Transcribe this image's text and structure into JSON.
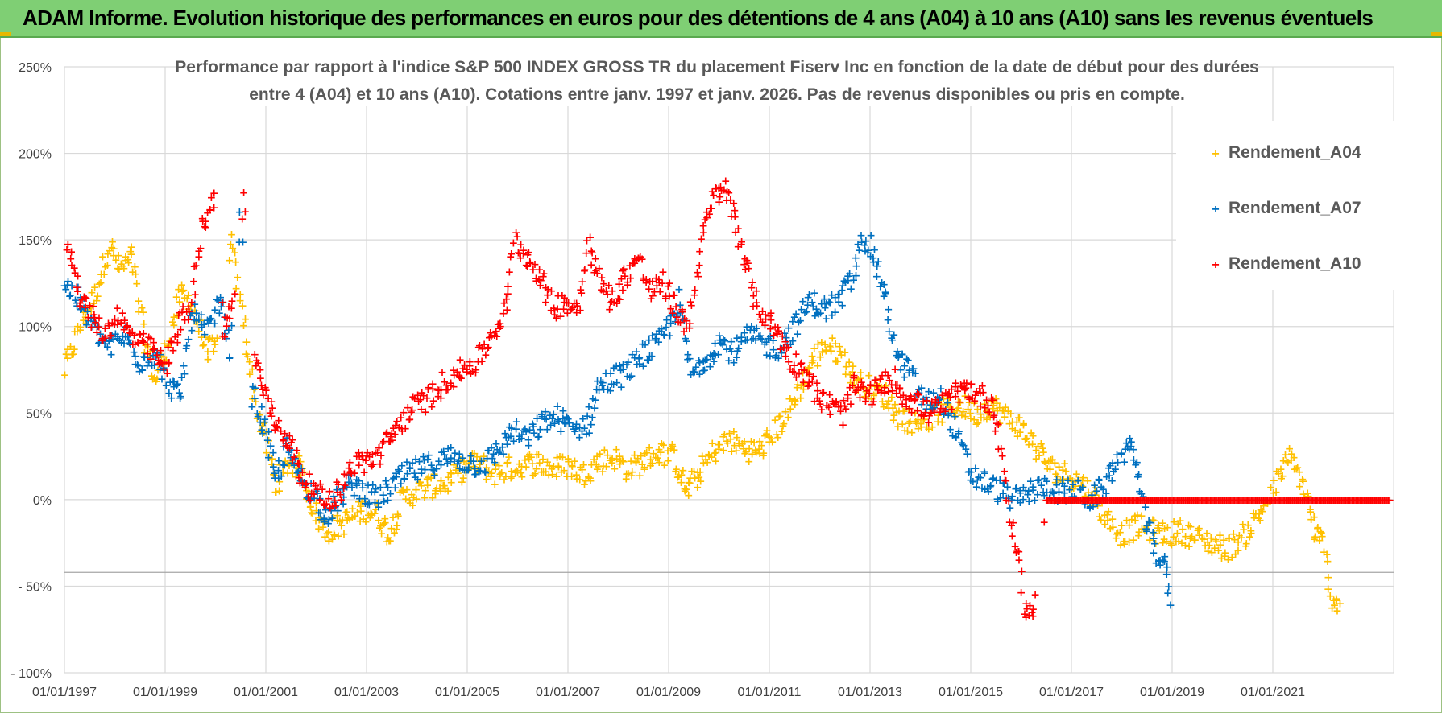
{
  "header": {
    "title": "ADAM Informe. Evolution historique des performances en euros pour des détentions de 4 ans (A04) à 10 ans (A10) sans les revenus éventuels"
  },
  "colors": {
    "A04": "#ffc000",
    "A07": "#0070c0",
    "A10": "#ff0000",
    "grid": "#d9d9d9",
    "title_bar": "#7fcf74"
  },
  "chart_data": {
    "type": "scatter",
    "title_lines": [
      "Performance par rapport à l'indice S&P 500 INDEX GROSS TR  du placement Fiserv Inc en fonction de la date de début pour des durées",
      "entre 4 (A04) et 10 ans (A10).  Cotations entre janv. 1997 et janv. 2026. Pas de revenus disponibles ou pris en compte."
    ],
    "xlabel": "",
    "ylabel": "",
    "xlim": [
      1997.0,
      2023.4
    ],
    "ylim": [
      -100,
      250
    ],
    "x_tick_labels": [
      "01/01/1997",
      "01/01/1999",
      "01/01/2001",
      "01/01/2003",
      "01/01/2005",
      "01/01/2007",
      "01/01/2009",
      "01/01/2011",
      "01/01/2013",
      "01/01/2015",
      "01/01/2017",
      "01/01/2019",
      "01/01/2021"
    ],
    "x_tick_values": [
      1997,
      1999,
      2001,
      2003,
      2005,
      2007,
      2009,
      2011,
      2013,
      2015,
      2017,
      2019,
      2021
    ],
    "y_tick_labels": [
      "250%",
      "200%",
      "150%",
      "100%",
      "50%",
      "0%",
      "- 50%",
      "- 100%"
    ],
    "y_tick_values": [
      250,
      200,
      150,
      100,
      50,
      0,
      -50,
      -100
    ],
    "legend": [
      "Rendement_A04",
      "Rendement_A07",
      "Rendement_A10"
    ],
    "legend_position": "top-right",
    "series": [
      {
        "name": "Rendement_A04",
        "color": "#ffc000",
        "points": [
          [
            1997.0,
            75
          ],
          [
            1997.3,
            100
          ],
          [
            1997.6,
            118
          ],
          [
            1997.9,
            148
          ],
          [
            1998.1,
            133
          ],
          [
            1998.35,
            140
          ],
          [
            1998.6,
            92
          ],
          [
            1998.8,
            68
          ],
          [
            1999.0,
            85
          ],
          [
            1999.3,
            118
          ],
          [
            1999.5,
            115
          ],
          [
            1999.8,
            88
          ],
          [
            2000.0,
            86
          ],
          [
            2000.3,
            150
          ],
          [
            2000.55,
            105
          ],
          [
            2000.8,
            55
          ],
          [
            2001.0,
            35
          ],
          [
            2001.2,
            8
          ],
          [
            2001.45,
            22
          ],
          [
            2001.7,
            18
          ],
          [
            2001.95,
            -5
          ],
          [
            2002.2,
            -18
          ],
          [
            2002.45,
            -15
          ],
          [
            2002.7,
            -10
          ],
          [
            2002.95,
            -5
          ],
          [
            2003.2,
            -8
          ],
          [
            2003.45,
            -20
          ],
          [
            2003.7,
            0
          ],
          [
            2004.0,
            5
          ],
          [
            2004.3,
            8
          ],
          [
            2004.6,
            10
          ],
          [
            2004.9,
            18
          ],
          [
            2005.2,
            22
          ],
          [
            2005.5,
            15
          ],
          [
            2005.8,
            18
          ],
          [
            2006.1,
            20
          ],
          [
            2006.4,
            22
          ],
          [
            2006.7,
            18
          ],
          [
            2007.0,
            20
          ],
          [
            2007.3,
            15
          ],
          [
            2007.6,
            22
          ],
          [
            2007.9,
            25
          ],
          [
            2008.2,
            18
          ],
          [
            2008.5,
            22
          ],
          [
            2008.8,
            28
          ],
          [
            2009.1,
            25
          ],
          [
            2009.35,
            5
          ],
          [
            2009.6,
            15
          ],
          [
            2009.9,
            28
          ],
          [
            2010.2,
            35
          ],
          [
            2010.5,
            30
          ],
          [
            2010.8,
            28
          ],
          [
            2011.0,
            35
          ],
          [
            2011.3,
            48
          ],
          [
            2011.55,
            62
          ],
          [
            2011.8,
            78
          ],
          [
            2012.1,
            90
          ],
          [
            2012.4,
            85
          ],
          [
            2012.7,
            70
          ],
          [
            2013.0,
            65
          ],
          [
            2013.3,
            60
          ],
          [
            2013.6,
            48
          ],
          [
            2013.9,
            45
          ],
          [
            2014.2,
            48
          ],
          [
            2014.5,
            52
          ],
          [
            2014.8,
            55
          ],
          [
            2015.1,
            50
          ],
          [
            2015.4,
            55
          ],
          [
            2015.7,
            48
          ],
          [
            2016.0,
            42
          ],
          [
            2016.3,
            30
          ],
          [
            2016.6,
            18
          ],
          [
            2016.9,
            15
          ],
          [
            2017.2,
            10
          ],
          [
            2017.45,
            2
          ],
          [
            2017.7,
            -10
          ],
          [
            2018.0,
            -20
          ],
          [
            2018.3,
            -15
          ],
          [
            2018.6,
            -18
          ],
          [
            2018.9,
            -20
          ],
          [
            2019.2,
            -18
          ],
          [
            2019.5,
            -22
          ],
          [
            2019.8,
            -25
          ],
          [
            2020.1,
            -28
          ],
          [
            2020.4,
            -22
          ],
          [
            2020.7,
            -10
          ],
          [
            2021.0,
            5
          ],
          [
            2021.3,
            25
          ],
          [
            2021.6,
            10
          ],
          [
            2021.85,
            -20
          ],
          [
            2022.0,
            -25
          ],
          [
            2022.15,
            -55
          ],
          [
            2022.35,
            -60
          ]
        ]
      },
      {
        "name": "Rendement_A07",
        "color": "#0070c0",
        "points": [
          [
            1997.0,
            125
          ],
          [
            1997.3,
            115
          ],
          [
            1997.6,
            98
          ],
          [
            1997.9,
            88
          ],
          [
            1998.2,
            95
          ],
          [
            1998.5,
            80
          ],
          [
            1998.8,
            85
          ],
          [
            1999.0,
            70
          ],
          [
            1999.3,
            58
          ],
          [
            1999.55,
            110
          ],
          [
            1999.8,
            95
          ],
          [
            2000.1,
            115
          ],
          [
            2000.3,
            85
          ],
          [
            2000.5,
            160
          ],
          [
            2000.75,
            60
          ],
          [
            2001.0,
            40
          ],
          [
            2001.2,
            10
          ],
          [
            2001.4,
            30
          ],
          [
            2001.65,
            15
          ],
          [
            2001.9,
            5
          ],
          [
            2002.2,
            -8
          ],
          [
            2002.45,
            0
          ],
          [
            2002.7,
            10
          ],
          [
            2002.95,
            5
          ],
          [
            2003.2,
            0
          ],
          [
            2003.5,
            8
          ],
          [
            2003.8,
            15
          ],
          [
            2004.1,
            18
          ],
          [
            2004.4,
            22
          ],
          [
            2004.7,
            25
          ],
          [
            2005.0,
            22
          ],
          [
            2005.3,
            20
          ],
          [
            2005.6,
            28
          ],
          [
            2005.9,
            40
          ],
          [
            2006.2,
            35
          ],
          [
            2006.5,
            45
          ],
          [
            2006.8,
            48
          ],
          [
            2007.1,
            40
          ],
          [
            2007.4,
            45
          ],
          [
            2007.6,
            65
          ],
          [
            2007.9,
            70
          ],
          [
            2008.2,
            75
          ],
          [
            2008.5,
            85
          ],
          [
            2008.8,
            90
          ],
          [
            2009.0,
            100
          ],
          [
            2009.2,
            115
          ],
          [
            2009.45,
            72
          ],
          [
            2009.75,
            82
          ],
          [
            2010.0,
            92
          ],
          [
            2010.3,
            85
          ],
          [
            2010.6,
            95
          ],
          [
            2010.9,
            90
          ],
          [
            2011.2,
            88
          ],
          [
            2011.5,
            100
          ],
          [
            2011.8,
            115
          ],
          [
            2012.1,
            110
          ],
          [
            2012.4,
            115
          ],
          [
            2012.7,
            130
          ],
          [
            2012.85,
            155
          ],
          [
            2013.1,
            140
          ],
          [
            2013.35,
            110
          ],
          [
            2013.55,
            80
          ],
          [
            2013.8,
            75
          ],
          [
            2014.1,
            55
          ],
          [
            2014.4,
            60
          ],
          [
            2014.7,
            40
          ],
          [
            2015.0,
            15
          ],
          [
            2015.3,
            10
          ],
          [
            2015.6,
            5
          ],
          [
            2015.9,
            0
          ],
          [
            2016.2,
            5
          ],
          [
            2016.5,
            8
          ],
          [
            2016.8,
            5
          ],
          [
            2017.1,
            5
          ],
          [
            2017.4,
            0
          ],
          [
            2017.7,
            10
          ],
          [
            2018.0,
            28
          ],
          [
            2018.25,
            30
          ],
          [
            2018.45,
            -10
          ],
          [
            2018.7,
            -30
          ],
          [
            2018.9,
            -42
          ],
          [
            2019.0,
            -70
          ]
        ]
      },
      {
        "name": "Rendement_A10",
        "color": "#ff0000",
        "points": [
          [
            1997.05,
            150
          ],
          [
            1997.3,
            120
          ],
          [
            1997.55,
            105
          ],
          [
            1997.8,
            95
          ],
          [
            1998.05,
            108
          ],
          [
            1998.3,
            95
          ],
          [
            1998.55,
            90
          ],
          [
            1998.8,
            85
          ],
          [
            1999.0,
            75
          ],
          [
            1999.25,
            100
          ],
          [
            1999.5,
            110
          ],
          [
            1999.75,
            160
          ],
          [
            1999.95,
            175
          ],
          [
            2000.15,
            100
          ],
          [
            2000.35,
            110
          ],
          [
            2000.55,
            175
          ],
          [
            2000.8,
            80
          ],
          [
            2001.0,
            60
          ],
          [
            2001.2,
            45
          ],
          [
            2001.45,
            35
          ],
          [
            2001.7,
            15
          ],
          [
            2001.95,
            5
          ],
          [
            2002.2,
            0
          ],
          [
            2002.45,
            5
          ],
          [
            2002.7,
            20
          ],
          [
            2002.95,
            22
          ],
          [
            2003.2,
            25
          ],
          [
            2003.45,
            35
          ],
          [
            2003.7,
            45
          ],
          [
            2004.0,
            55
          ],
          [
            2004.3,
            60
          ],
          [
            2004.6,
            70
          ],
          [
            2004.9,
            75
          ],
          [
            2005.2,
            80
          ],
          [
            2005.5,
            95
          ],
          [
            2005.75,
            110
          ],
          [
            2005.95,
            150
          ],
          [
            2006.2,
            140
          ],
          [
            2006.45,
            130
          ],
          [
            2006.7,
            110
          ],
          [
            2006.95,
            115
          ],
          [
            2007.2,
            110
          ],
          [
            2007.4,
            150
          ],
          [
            2007.65,
            125
          ],
          [
            2007.9,
            115
          ],
          [
            2008.15,
            130
          ],
          [
            2008.4,
            140
          ],
          [
            2008.65,
            120
          ],
          [
            2008.9,
            125
          ],
          [
            2009.15,
            110
          ],
          [
            2009.4,
            100
          ],
          [
            2009.65,
            150
          ],
          [
            2009.9,
            175
          ],
          [
            2010.1,
            180
          ],
          [
            2010.3,
            165
          ],
          [
            2010.5,
            140
          ],
          [
            2010.7,
            115
          ],
          [
            2010.95,
            105
          ],
          [
            2011.2,
            95
          ],
          [
            2011.45,
            80
          ],
          [
            2011.7,
            75
          ],
          [
            2011.95,
            60
          ],
          [
            2012.2,
            55
          ],
          [
            2012.45,
            50
          ],
          [
            2012.7,
            65
          ],
          [
            2012.95,
            60
          ],
          [
            2013.2,
            65
          ],
          [
            2013.45,
            70
          ],
          [
            2013.7,
            60
          ],
          [
            2013.95,
            55
          ],
          [
            2014.2,
            50
          ],
          [
            2014.45,
            55
          ],
          [
            2014.7,
            60
          ],
          [
            2014.95,
            65
          ],
          [
            2015.2,
            60
          ],
          [
            2015.45,
            55
          ],
          [
            2015.65,
            20
          ],
          [
            2015.8,
            -15
          ],
          [
            2015.95,
            -30
          ],
          [
            2016.05,
            -62
          ],
          [
            2016.25,
            -65
          ],
          [
            2016.5,
            0
          ],
          [
            2017.0,
            0
          ],
          [
            2017.5,
            0
          ],
          [
            2018.0,
            0
          ],
          [
            2018.5,
            0
          ],
          [
            2019.0,
            0
          ],
          [
            2019.5,
            0
          ],
          [
            2020.0,
            0
          ],
          [
            2020.5,
            0
          ],
          [
            2021.0,
            0
          ],
          [
            2021.5,
            0
          ],
          [
            2022.0,
            0
          ],
          [
            2022.5,
            0
          ],
          [
            2023.0,
            0
          ],
          [
            2023.35,
            0
          ]
        ]
      }
    ]
  }
}
